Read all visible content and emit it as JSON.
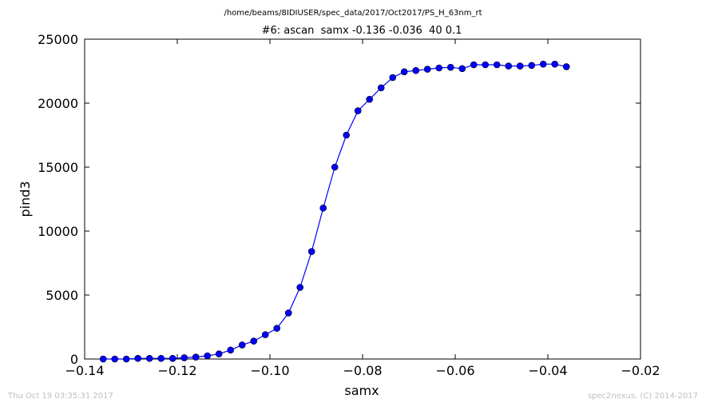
{
  "header": {
    "path": "/home/beams/8IDIUSER/spec_data/2017/Oct2017/PS_H_63nm_rt",
    "title": "#6: ascan  samx -0.136 -0.036  40 0.1"
  },
  "footer": {
    "timestamp": "Thu Oct 19 03:35:31 2017",
    "credit": "spec2nexus, (C) 2014-2017"
  },
  "chart_data": {
    "type": "line",
    "title": "#6: ascan  samx -0.136 -0.036  40 0.1",
    "xlabel": "samx",
    "ylabel": "pind3",
    "xlim": [
      -0.14,
      -0.02
    ],
    "ylim": [
      0,
      25000
    ],
    "xticks": [
      -0.14,
      -0.12,
      -0.1,
      -0.08,
      -0.06,
      -0.04,
      -0.02
    ],
    "xtick_labels": [
      "−0.14",
      "−0.12",
      "−0.10",
      "−0.08",
      "−0.06",
      "−0.04",
      "−0.02"
    ],
    "yticks": [
      0,
      5000,
      10000,
      15000,
      20000,
      25000
    ],
    "ytick_labels": [
      "0",
      "5000",
      "10000",
      "15000",
      "20000",
      "25000"
    ],
    "grid": false,
    "series": [
      {
        "color": "#0000ff",
        "marker": "circle",
        "x": [
          -0.136,
          -0.1335,
          -0.131,
          -0.1285,
          -0.126,
          -0.1235,
          -0.121,
          -0.1185,
          -0.116,
          -0.1135,
          -0.111,
          -0.1085,
          -0.106,
          -0.1035,
          -0.101,
          -0.0985,
          -0.096,
          -0.0935,
          -0.091,
          -0.0885,
          -0.086,
          -0.0835,
          -0.081,
          -0.0785,
          -0.076,
          -0.0735,
          -0.071,
          -0.0685,
          -0.066,
          -0.0635,
          -0.061,
          -0.0585,
          -0.056,
          -0.0535,
          -0.051,
          -0.0485,
          -0.046,
          -0.0435,
          -0.041,
          -0.0385,
          -0.036
        ],
        "y": [
          0,
          0,
          0,
          50,
          50,
          50,
          50,
          100,
          150,
          250,
          400,
          700,
          1100,
          1400,
          1900,
          2400,
          3600,
          5600,
          8400,
          11800,
          15000,
          17500,
          19400,
          20300,
          21200,
          22000,
          22450,
          22550,
          22650,
          22750,
          22800,
          22700,
          23000,
          23000,
          23000,
          22900,
          22900,
          22950,
          23050,
          23050,
          22850
        ]
      }
    ]
  }
}
